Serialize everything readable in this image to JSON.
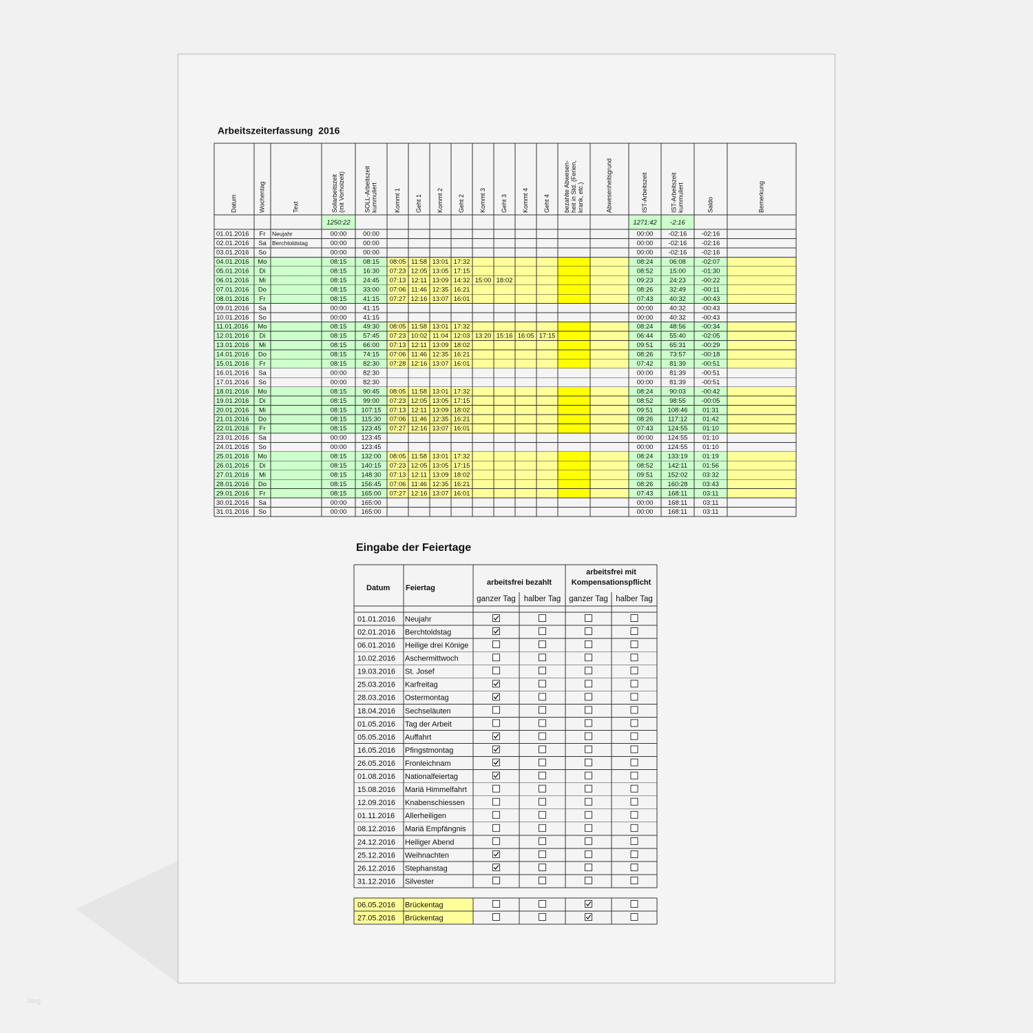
{
  "title": "Arbeitszeiterfassung  2016",
  "timesheet": {
    "headers": [
      [
        "Datum"
      ],
      [
        "Wochentag"
      ],
      [
        "Text"
      ],
      [
        "Sollarbeitszeit",
        "(mit Vorholzeit)"
      ],
      [
        "SOLL-Arbeitszeit",
        "kummuliert"
      ],
      [
        "Kommt 1"
      ],
      [
        "Geht 1"
      ],
      [
        "Kommt 2"
      ],
      [
        "Geht 2"
      ],
      [
        "Kommt 3"
      ],
      [
        "Geht 3"
      ],
      [
        "Kommt 4"
      ],
      [
        "Geht 4"
      ],
      [
        "bezahlte Abwesen-",
        "heit in Std. (Ferien,",
        "krank, etc.)"
      ],
      [
        "Abwesenheitsgrund"
      ],
      [
        "IST-Arbeitszeit"
      ],
      [
        "IST-Arbeitszeit",
        "kummuliert"
      ],
      [
        "Saldo"
      ],
      [
        "Bemerkung"
      ]
    ],
    "soll_total": "1250:22",
    "ist_total": "1271:42",
    "diff_total": "-2:16",
    "rows": [
      {
        "date": "01.01.2016",
        "day": "Fr",
        "text": "Neujahr",
        "soll": "00:00",
        "soll_cum": "00:00",
        "ist": "00:00",
        "ist_cum": "-02:16",
        "saldo": "-02:16"
      },
      {
        "date": "02.01.2016",
        "day": "Sa",
        "text": "Berchtoldstag",
        "soll": "00:00",
        "soll_cum": "00:00",
        "ist": "00:00",
        "ist_cum": "-02:16",
        "saldo": "-02:16"
      },
      {
        "date": "03.01.2016",
        "day": "So",
        "soll": "00:00",
        "soll_cum": "00:00",
        "ist": "00:00",
        "ist_cum": "-02:16",
        "saldo": "-02:16"
      },
      {
        "date": "04.01.2016",
        "day": "Mo",
        "soll": "08:15",
        "soll_cum": "08:15",
        "times": [
          "08:05",
          "11:58",
          "13:01",
          "17:32"
        ],
        "ist": "08:24",
        "ist_cum": "06:08",
        "saldo": "-02:07"
      },
      {
        "date": "05.01.2016",
        "day": "Di",
        "soll": "08:15",
        "soll_cum": "16:30",
        "times": [
          "07:23",
          "12:05",
          "13:05",
          "17:15"
        ],
        "ist": "08:52",
        "ist_cum": "15:00",
        "saldo": "-01:30"
      },
      {
        "date": "06.01.2016",
        "day": "Mi",
        "soll": "08:15",
        "soll_cum": "24:45",
        "times": [
          "07:13",
          "12:11",
          "13:09",
          "14:32",
          "15:00",
          "18:02"
        ],
        "ist": "09:23",
        "ist_cum": "24:23",
        "saldo": "-00:22"
      },
      {
        "date": "07.01.2016",
        "day": "Do",
        "soll": "08:15",
        "soll_cum": "33:00",
        "times": [
          "07:06",
          "11:46",
          "12:35",
          "16:21"
        ],
        "ist": "08:26",
        "ist_cum": "32:49",
        "saldo": "-00:11"
      },
      {
        "date": "08.01.2016",
        "day": "Fr",
        "soll": "08:15",
        "soll_cum": "41:15",
        "times": [
          "07:27",
          "12:16",
          "13:07",
          "16:01"
        ],
        "ist": "07:43",
        "ist_cum": "40:32",
        "saldo": "-00:43"
      },
      {
        "date": "09.01.2016",
        "day": "Sa",
        "soll": "00:00",
        "soll_cum": "41:15",
        "ist": "00:00",
        "ist_cum": "40:32",
        "saldo": "-00:43"
      },
      {
        "date": "10.01.2016",
        "day": "So",
        "soll": "00:00",
        "soll_cum": "41:15",
        "ist": "00:00",
        "ist_cum": "40:32",
        "saldo": "-00:43"
      },
      {
        "date": "11.01.2016",
        "day": "Mo",
        "soll": "08:15",
        "soll_cum": "49:30",
        "times": [
          "08:05",
          "11:58",
          "13:01",
          "17:32"
        ],
        "ist": "08:24",
        "ist_cum": "48:56",
        "saldo": "-00:34"
      },
      {
        "date": "12.01.2016",
        "day": "Di",
        "soll": "08:15",
        "soll_cum": "57:45",
        "times": [
          "07:23",
          "10:02",
          "11:04",
          "12:03",
          "13:20",
          "15:16",
          "16:05",
          "17:15"
        ],
        "ist": "06:44",
        "ist_cum": "55:40",
        "saldo": "-02:05"
      },
      {
        "date": "13.01.2016",
        "day": "Mi",
        "soll": "08:15",
        "soll_cum": "66:00",
        "times": [
          "07:13",
          "12:11",
          "13:09",
          "18:02"
        ],
        "ist": "09:51",
        "ist_cum": "65:31",
        "saldo": "-00:29"
      },
      {
        "date": "14.01.2016",
        "day": "Do",
        "soll": "08:15",
        "soll_cum": "74:15",
        "times": [
          "07:06",
          "11:46",
          "12:35",
          "16:21"
        ],
        "ist": "08:26",
        "ist_cum": "73:57",
        "saldo": "-00:18"
      },
      {
        "date": "15.01.2016",
        "day": "Fr",
        "soll": "08:15",
        "soll_cum": "82:30",
        "times": [
          "07:28",
          "12:16",
          "13:07",
          "16:01"
        ],
        "ist": "07:42",
        "ist_cum": "81:39",
        "saldo": "-00:51"
      },
      {
        "date": "16.01.2016",
        "day": "Sa",
        "soll": "00:00",
        "soll_cum": "82:30",
        "ist": "00:00",
        "ist_cum": "81:39",
        "saldo": "-00:51"
      },
      {
        "date": "17.01.2016",
        "day": "So",
        "soll": "00:00",
        "soll_cum": "82:30",
        "ist": "00:00",
        "ist_cum": "81:39",
        "saldo": "-00:51"
      },
      {
        "date": "18.01.2016",
        "day": "Mo",
        "soll": "08:15",
        "soll_cum": "90:45",
        "times": [
          "08:05",
          "11:58",
          "13:01",
          "17:32"
        ],
        "ist": "08:24",
        "ist_cum": "90:03",
        "saldo": "-00:42"
      },
      {
        "date": "19.01.2016",
        "day": "Di",
        "soll": "08:15",
        "soll_cum": "99:00",
        "times": [
          "07:23",
          "12:05",
          "13:05",
          "17:15"
        ],
        "ist": "08:52",
        "ist_cum": "98:55",
        "saldo": "-00:05"
      },
      {
        "date": "20.01.2016",
        "day": "Mi",
        "soll": "08:15",
        "soll_cum": "107:15",
        "times": [
          "07:13",
          "12:11",
          "13:09",
          "18:02"
        ],
        "ist": "09:51",
        "ist_cum": "108:46",
        "saldo": "01:31"
      },
      {
        "date": "21.01.2016",
        "day": "Do",
        "soll": "08:15",
        "soll_cum": "115:30",
        "times": [
          "07:06",
          "11:46",
          "12:35",
          "16:21"
        ],
        "ist": "08:26",
        "ist_cum": "117:12",
        "saldo": "01:42"
      },
      {
        "date": "22.01.2016",
        "day": "Fr",
        "soll": "08:15",
        "soll_cum": "123:45",
        "times": [
          "07:27",
          "12:16",
          "13:07",
          "16:01"
        ],
        "ist": "07:43",
        "ist_cum": "124:55",
        "saldo": "01:10"
      },
      {
        "date": "23.01.2016",
        "day": "Sa",
        "soll": "00:00",
        "soll_cum": "123:45",
        "ist": "00:00",
        "ist_cum": "124:55",
        "saldo": "01:10"
      },
      {
        "date": "24.01.2016",
        "day": "So",
        "soll": "00:00",
        "soll_cum": "123:45",
        "ist": "00:00",
        "ist_cum": "124:55",
        "saldo": "01:10"
      },
      {
        "date": "25.01.2016",
        "day": "Mo",
        "soll": "08:15",
        "soll_cum": "132:00",
        "times": [
          "08:05",
          "11:58",
          "13:01",
          "17:32"
        ],
        "ist": "08:24",
        "ist_cum": "133:19",
        "saldo": "01:19"
      },
      {
        "date": "26.01.2016",
        "day": "Di",
        "soll": "08:15",
        "soll_cum": "140:15",
        "times": [
          "07:23",
          "12:05",
          "13:05",
          "17:15"
        ],
        "ist": "08:52",
        "ist_cum": "142:11",
        "saldo": "01:56"
      },
      {
        "date": "27.01.2016",
        "day": "Mi",
        "soll": "08:15",
        "soll_cum": "148:30",
        "times": [
          "07:13",
          "12:11",
          "13:09",
          "18:02"
        ],
        "ist": "09:51",
        "ist_cum": "152:02",
        "saldo": "03:32"
      },
      {
        "date": "28.01.2016",
        "day": "Do",
        "soll": "08:15",
        "soll_cum": "156:45",
        "times": [
          "07:06",
          "11:46",
          "12:35",
          "16:21"
        ],
        "ist": "08:26",
        "ist_cum": "160:28",
        "saldo": "03:43"
      },
      {
        "date": "29.01.2016",
        "day": "Fr",
        "soll": "08:15",
        "soll_cum": "165:00",
        "times": [
          "07:27",
          "12:16",
          "13:07",
          "16:01"
        ],
        "ist": "07:43",
        "ist_cum": "168:11",
        "saldo": "03:11"
      },
      {
        "date": "30.01.2016",
        "day": "Sa",
        "soll": "00:00",
        "soll_cum": "165:00",
        "ist": "00:00",
        "ist_cum": "168:11",
        "saldo": "03:11"
      },
      {
        "date": "31.01.2016",
        "day": "So",
        "soll": "00:00",
        "soll_cum": "165:00",
        "ist": "00:00",
        "ist_cum": "168:11",
        "saldo": "03:11"
      }
    ]
  },
  "holidays": {
    "title": "Eingabe der Feiertage",
    "header_date": "Datum",
    "header_name": "Feiertag",
    "group_paid": [
      "arbeitsfrei bezahlt"
    ],
    "group_comp": [
      "arbeitsfrei mit",
      "Kompensationspflicht"
    ],
    "sub_headers": [
      "ganzer Tag",
      "halber Tag",
      "ganzer Tag",
      "halber Tag"
    ],
    "rows": [
      {
        "date": "01.01.2016",
        "name": "Neujahr",
        "checks": [
          true,
          false,
          false,
          false
        ]
      },
      {
        "date": "02.01.2016",
        "name": "Berchtoldstag",
        "checks": [
          true,
          false,
          false,
          false
        ]
      },
      {
        "date": "06.01.2016",
        "name": "Heilige drei Könige",
        "checks": [
          false,
          false,
          false,
          false
        ]
      },
      {
        "date": "10.02.2016",
        "name": "Aschermittwoch",
        "checks": [
          false,
          false,
          false,
          false
        ]
      },
      {
        "date": "19.03.2016",
        "name": "St. Josef",
        "checks": [
          false,
          false,
          false,
          false
        ]
      },
      {
        "date": "25.03.2016",
        "name": "Karfreitag",
        "checks": [
          true,
          false,
          false,
          false
        ]
      },
      {
        "date": "28.03.2016",
        "name": "Ostermontag",
        "checks": [
          true,
          false,
          false,
          false
        ]
      },
      {
        "date": "18.04.2016",
        "name": "Sechseläuten",
        "checks": [
          false,
          false,
          false,
          false
        ]
      },
      {
        "date": "01.05.2016",
        "name": "Tag der Arbeit",
        "checks": [
          false,
          false,
          false,
          false
        ]
      },
      {
        "date": "05.05.2016",
        "name": "Auffahrt",
        "checks": [
          true,
          false,
          false,
          false
        ]
      },
      {
        "date": "16.05.2016",
        "name": "Pfingstmontag",
        "checks": [
          true,
          false,
          false,
          false
        ]
      },
      {
        "date": "26.05.2016",
        "name": "Fronleichnam",
        "checks": [
          true,
          false,
          false,
          false
        ]
      },
      {
        "date": "01.08.2016",
        "name": "Nationalfeiertag",
        "checks": [
          true,
          false,
          false,
          false
        ]
      },
      {
        "date": "15.08.2016",
        "name": "Mariä Himmelfahrt",
        "checks": [
          false,
          false,
          false,
          false
        ]
      },
      {
        "date": "12.09.2016",
        "name": "Knabenschiessen",
        "checks": [
          false,
          false,
          false,
          false
        ]
      },
      {
        "date": "01.11.2016",
        "name": "Allerheiligen",
        "checks": [
          false,
          false,
          false,
          false
        ]
      },
      {
        "date": "08.12.2016",
        "name": "Mariä Empfängnis",
        "checks": [
          false,
          false,
          false,
          false
        ]
      },
      {
        "date": "24.12.2016",
        "name": "Heiliger Abend",
        "checks": [
          false,
          false,
          false,
          false
        ]
      },
      {
        "date": "25.12.2016",
        "name": "Weihnachten",
        "checks": [
          true,
          false,
          false,
          false
        ]
      },
      {
        "date": "26.12.2016",
        "name": "Stephanstag",
        "checks": [
          true,
          false,
          false,
          false
        ]
      },
      {
        "date": "31.12.2016",
        "name": "Silvester",
        "checks": [
          false,
          false,
          false,
          false
        ]
      }
    ],
    "bridge_rows": [
      {
        "date": "06.05.2016",
        "name": "Brückentag",
        "checks": [
          false,
          false,
          true,
          false
        ]
      },
      {
        "date": "27.05.2016",
        "name": "Brückentag",
        "checks": [
          false,
          false,
          true,
          false
        ]
      }
    ]
  },
  "watermark": "blog"
}
